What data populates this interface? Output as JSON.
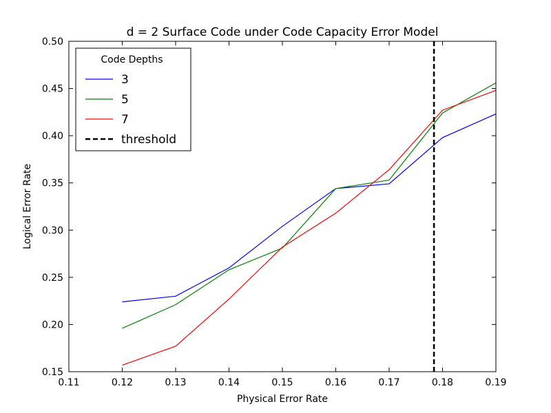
{
  "chart_data": {
    "type": "line",
    "title": "d = 2 Surface Code under Code Capacity Error Model",
    "xlabel": "Physical Error Rate",
    "ylabel": "Logical Error Rate",
    "xlim": [
      0.11,
      0.19
    ],
    "ylim": [
      0.15,
      0.5
    ],
    "xticks": [
      "0.11",
      "0.12",
      "0.13",
      "0.14",
      "0.15",
      "0.16",
      "0.17",
      "0.18",
      "0.19"
    ],
    "yticks": [
      "0.15",
      "0.20",
      "0.25",
      "0.30",
      "0.35",
      "0.40",
      "0.45",
      "0.50"
    ],
    "grid": false,
    "legend": {
      "title": "Code Depths",
      "placement": "top-left"
    },
    "x": [
      0.12,
      0.13,
      0.14,
      0.15,
      0.16,
      0.17,
      0.18,
      0.19
    ],
    "series": [
      {
        "name": "3",
        "color": "#0000ff",
        "values": [
          0.224,
          0.23,
          0.26,
          0.304,
          0.344,
          0.349,
          0.398,
          0.423
        ]
      },
      {
        "name": "5",
        "color": "#008000",
        "values": [
          0.196,
          0.221,
          0.258,
          0.281,
          0.344,
          0.353,
          0.424,
          0.456
        ]
      },
      {
        "name": "7",
        "color": "#ff0000",
        "values": [
          0.157,
          0.177,
          0.227,
          0.282,
          0.318,
          0.364,
          0.427,
          0.448
        ]
      }
    ],
    "threshold": {
      "name": "threshold",
      "x": 0.1784,
      "color": "#000000",
      "style": "dashed"
    }
  }
}
